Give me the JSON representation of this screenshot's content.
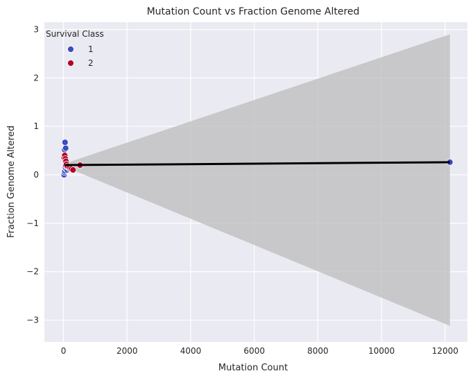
{
  "chart_data": {
    "type": "scatter",
    "title": "Mutation Count vs Fraction Genome Altered",
    "xlabel": "Mutation Count",
    "ylabel": "Fraction Genome Altered",
    "xlim": [
      -600,
      12700
    ],
    "ylim": [
      -3.45,
      3.15
    ],
    "xticks": [
      0,
      2000,
      4000,
      6000,
      8000,
      10000,
      12000
    ],
    "yticks": [
      -3,
      -2,
      -1,
      0,
      1,
      2,
      3
    ],
    "xtick_labels": [
      "0",
      "2000",
      "4000",
      "6000",
      "8000",
      "10000",
      "12000"
    ],
    "ytick_labels": [
      "−3",
      "−2",
      "−1",
      "0",
      "1",
      "2",
      "3"
    ],
    "grid": true,
    "legend": {
      "title": "Survival Class",
      "placement": "top-left",
      "entries": [
        "1",
        "2"
      ]
    },
    "colors": {
      "plot_background": "#eaeaf2",
      "grid": "#ffffff",
      "class_1": "#3b4cc0",
      "class_2": "#b40426",
      "regression_line": "#000000",
      "confidence_band": "#bcbcbc"
    },
    "series": [
      {
        "name": "1",
        "color": "#3b4cc0",
        "points": [
          [
            20,
            0.0
          ],
          [
            30,
            0.05
          ],
          [
            40,
            0.1
          ],
          [
            45,
            0.08
          ],
          [
            50,
            0.15
          ],
          [
            55,
            0.2
          ],
          [
            60,
            0.25
          ],
          [
            35,
            0.52
          ],
          [
            70,
            0.55
          ],
          [
            50,
            0.67
          ],
          [
            80,
            0.12
          ],
          [
            100,
            0.18
          ],
          [
            120,
            0.1
          ],
          [
            90,
            0.22
          ],
          [
            150,
            0.15
          ],
          [
            200,
            0.12
          ],
          [
            12150,
            0.26
          ]
        ]
      },
      {
        "name": "2",
        "color": "#b40426",
        "points": [
          [
            20,
            0.35
          ],
          [
            40,
            0.4
          ],
          [
            50,
            0.3
          ],
          [
            60,
            0.33
          ],
          [
            70,
            0.2
          ],
          [
            80,
            0.28
          ],
          [
            100,
            0.22
          ],
          [
            130,
            0.18
          ],
          [
            200,
            0.15
          ],
          [
            250,
            0.12
          ],
          [
            300,
            0.1
          ],
          [
            520,
            0.2
          ]
        ]
      }
    ],
    "regression": {
      "x": [
        30,
        12150
      ],
      "y": [
        0.2,
        0.26
      ]
    },
    "confidence_band": {
      "x": [
        30,
        12150
      ],
      "lower": [
        0.17,
        -3.12
      ],
      "upper": [
        0.23,
        2.9
      ]
    }
  }
}
